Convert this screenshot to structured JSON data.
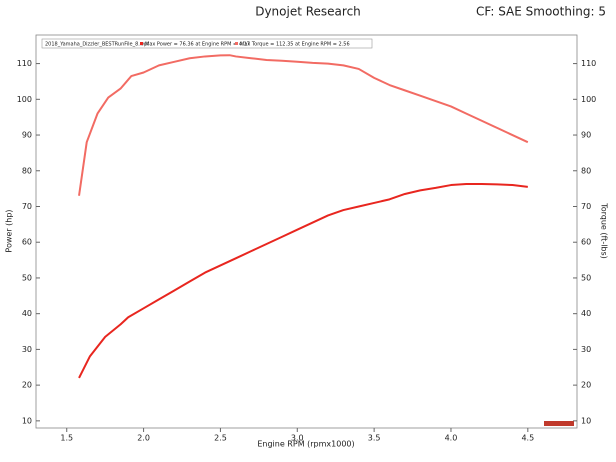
{
  "chart_data": {
    "type": "line",
    "title": "Dynojet Research",
    "subtitle": "CF: SAE Smoothing: 5",
    "x_label": "Engine RPM (rpmx1000)",
    "y_label": "Power (hp)",
    "y2_label": "Torque (ft-lbs)",
    "legend_title": "2018_Yamaha_Dizzler_BESTRunFile_8.wpf",
    "xlim": [
      1.3,
      4.82
    ],
    "xticks": [
      1.5,
      {
        "value": 2,
        "label": "2.0"
      },
      2.5,
      {
        "value": 3,
        "label": "3.0"
      },
      3.5,
      {
        "value": 4,
        "label": "4.0"
      },
      4.5
    ],
    "ylim": [
      8,
      118
    ],
    "yticks": [
      10,
      20,
      30,
      40,
      50,
      60,
      70,
      80,
      90,
      100,
      110
    ],
    "y2lim": [
      8,
      118
    ],
    "y2ticks": [
      10,
      20,
      30,
      40,
      50,
      60,
      70,
      80,
      90,
      100,
      110
    ],
    "grid": false,
    "series": [
      {
        "name": "Max Power = 76.36 at Engine RPM = 4.17",
        "color": "#e8261f",
        "axis": "y",
        "x": [
          1.58,
          1.65,
          1.75,
          1.85,
          1.9,
          2.0,
          2.1,
          2.2,
          2.3,
          2.4,
          2.5,
          2.6,
          2.7,
          2.8,
          2.9,
          3.0,
          3.1,
          3.2,
          3.3,
          3.4,
          3.5,
          3.6,
          3.7,
          3.8,
          3.9,
          4.0,
          4.1,
          4.2,
          4.3,
          4.4,
          4.5
        ],
        "values": [
          22,
          28,
          33.5,
          37,
          39,
          41.5,
          44,
          46.5,
          49,
          51.5,
          53.5,
          55.5,
          57.5,
          59.5,
          61.5,
          63.5,
          65.5,
          67.5,
          69,
          70,
          71,
          72,
          73.5,
          74.5,
          75.2,
          76,
          76.3,
          76.3,
          76.2,
          76,
          75.5
        ]
      },
      {
        "name": "Max Torque = 112.35 at Engine RPM = 2.56",
        "color": "#f26b63",
        "axis": "y2",
        "x": [
          1.58,
          1.63,
          1.7,
          1.77,
          1.85,
          1.92,
          2.0,
          2.1,
          2.2,
          2.3,
          2.4,
          2.5,
          2.56,
          2.6,
          2.7,
          2.8,
          2.9,
          3.0,
          3.1,
          3.2,
          3.3,
          3.4,
          3.5,
          3.6,
          3.7,
          3.8,
          3.9,
          4.0,
          4.1,
          4.2,
          4.3,
          4.4,
          4.5
        ],
        "values": [
          73,
          88,
          96,
          100.5,
          103,
          106.5,
          107.5,
          109.5,
          110.5,
          111.5,
          112,
          112.3,
          112.35,
          112,
          111.5,
          111,
          110.8,
          110.5,
          110.2,
          110,
          109.5,
          108.5,
          106,
          104,
          102.5,
          101,
          99.5,
          98,
          96,
          94,
          92,
          90,
          88
        ]
      }
    ]
  }
}
